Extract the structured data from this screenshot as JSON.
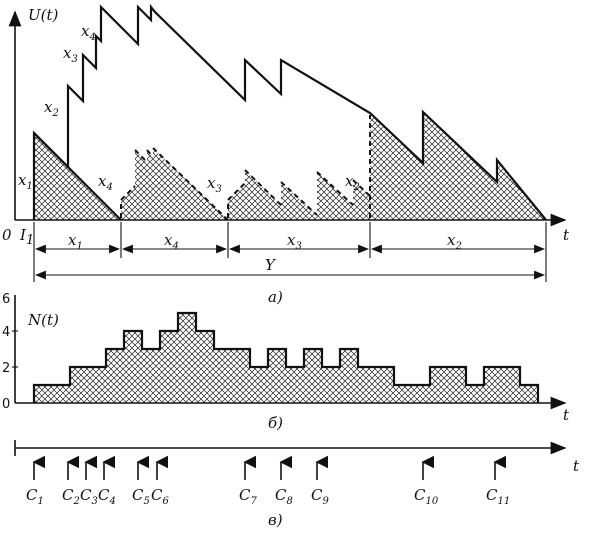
{
  "panel_a": {
    "ylabel": "U(t)",
    "xlabel": "t",
    "origin_label": "0",
    "start_label": "I",
    "start_sub": "1",
    "cumulative_labels": [
      {
        "base": "x",
        "sub": "1"
      },
      {
        "base": "x",
        "sub": "2"
      },
      {
        "base": "x",
        "sub": "3"
      },
      {
        "base": "x",
        "sub": "4"
      }
    ],
    "job_labels": [
      {
        "base": "x",
        "sub": "1"
      },
      {
        "base": "x",
        "sub": "4"
      },
      {
        "base": "x",
        "sub": "3"
      },
      {
        "base": "x",
        "sub": "2"
      }
    ],
    "busy_label": "Y",
    "caption": "а)"
  },
  "panel_b": {
    "ylabel": "N(t)",
    "xlabel": "t",
    "y_ticks": [
      "6",
      "4",
      "2",
      "0"
    ],
    "caption": "б)",
    "steps": [
      {
        "t_end": 1.0,
        "n": 1
      },
      {
        "t_end": 2.0,
        "n": 2
      },
      {
        "t_end": 2.5,
        "n": 3
      },
      {
        "t_end": 3.0,
        "n": 4
      },
      {
        "t_end": 3.5,
        "n": 3
      },
      {
        "t_end": 4.0,
        "n": 4
      },
      {
        "t_end": 4.5,
        "n": 5
      },
      {
        "t_end": 5.0,
        "n": 4
      },
      {
        "t_end": 6.0,
        "n": 3
      },
      {
        "t_end": 6.5,
        "n": 2
      },
      {
        "t_end": 7.0,
        "n": 3
      },
      {
        "t_end": 7.5,
        "n": 2
      },
      {
        "t_end": 8.0,
        "n": 3
      },
      {
        "t_end": 8.5,
        "n": 2
      },
      {
        "t_end": 9.0,
        "n": 3
      },
      {
        "t_end": 10.0,
        "n": 2
      },
      {
        "t_end": 11.0,
        "n": 1
      },
      {
        "t_end": 12.0,
        "n": 2
      },
      {
        "t_end": 12.5,
        "n": 1
      },
      {
        "t_end": 13.5,
        "n": 2
      },
      {
        "t_end": 14.0,
        "n": 1
      }
    ]
  },
  "panel_c": {
    "xlabel": "t",
    "caption": "в)",
    "arrivals": [
      {
        "base": "C",
        "sub": "1"
      },
      {
        "base": "C",
        "sub": "2"
      },
      {
        "base": "C",
        "sub": "3"
      },
      {
        "base": "C",
        "sub": "4"
      },
      {
        "base": "C",
        "sub": "5"
      },
      {
        "base": "C",
        "sub": "6"
      },
      {
        "base": "C",
        "sub": "7"
      },
      {
        "base": "C",
        "sub": "8"
      },
      {
        "base": "C",
        "sub": "9"
      },
      {
        "base": "C",
        "sub": "10"
      },
      {
        "base": "C",
        "sub": "11"
      }
    ]
  }
}
